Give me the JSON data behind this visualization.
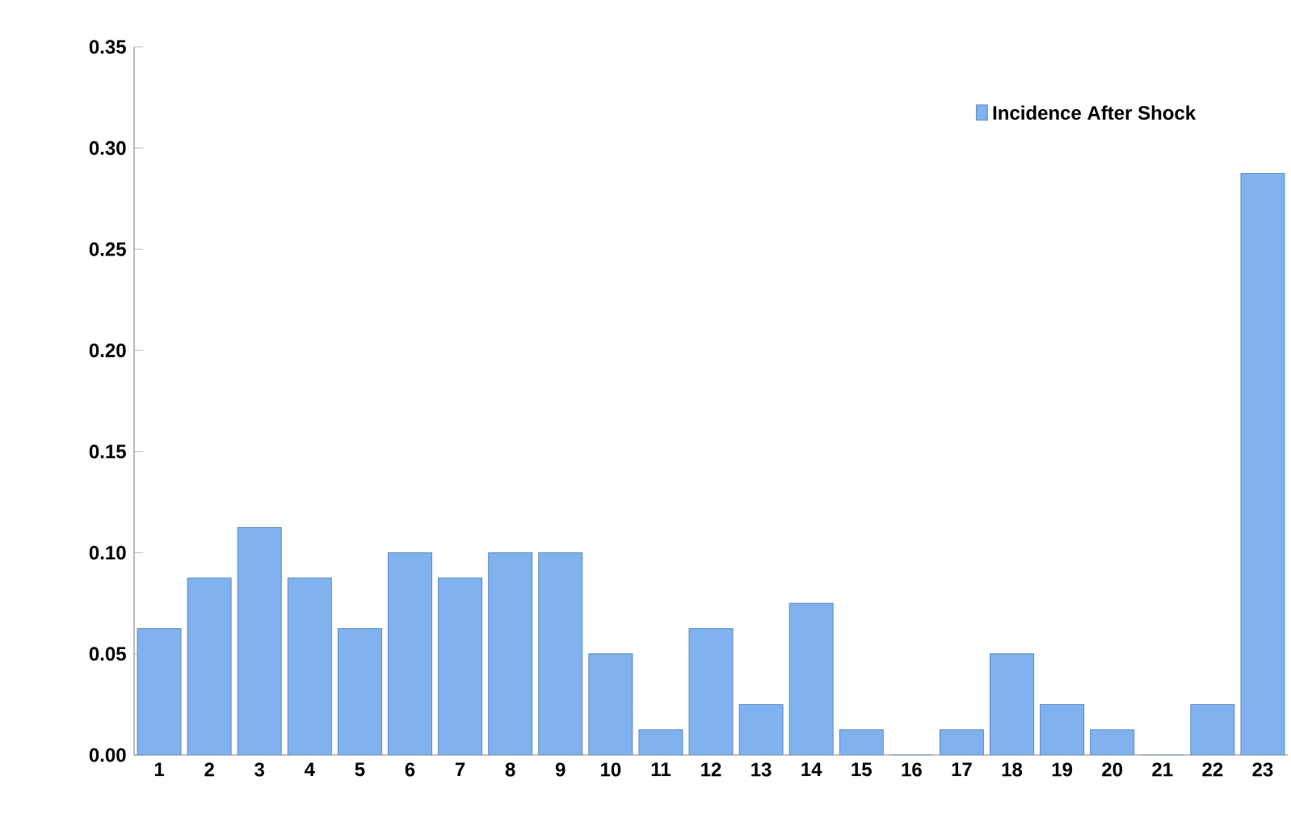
{
  "chart_data": {
    "type": "bar",
    "categories": [
      "1",
      "2",
      "3",
      "4",
      "5",
      "6",
      "7",
      "8",
      "9",
      "10",
      "11",
      "12",
      "13",
      "14",
      "15",
      "16",
      "17",
      "18",
      "19",
      "20",
      "21",
      "22",
      "23"
    ],
    "series": [
      {
        "name": "Incidence After Shock",
        "color": "#7fb2ee",
        "values": [
          0.0625,
          0.0875,
          0.1125,
          0.0875,
          0.0625,
          0.1,
          0.0875,
          0.1,
          0.1,
          0.05,
          0.0125,
          0.0625,
          0.025,
          0.075,
          0.0125,
          0,
          0.0125,
          0.05,
          0.025,
          0.0125,
          0,
          0.025,
          0.2875
        ]
      }
    ],
    "ylim": [
      0,
      0.35
    ],
    "yticks": [
      {
        "value": 0,
        "label": "0.00"
      },
      {
        "value": 0.05,
        "label": "0.05"
      },
      {
        "value": 0.1,
        "label": "0.10"
      },
      {
        "value": 0.15,
        "label": "0.15"
      },
      {
        "value": 0.2,
        "label": "0.20"
      },
      {
        "value": 0.25,
        "label": "0.25"
      },
      {
        "value": 0.3,
        "label": "0.30"
      },
      {
        "value": 0.35,
        "label": "0.35"
      }
    ],
    "grid": false,
    "legend": "top right"
  }
}
